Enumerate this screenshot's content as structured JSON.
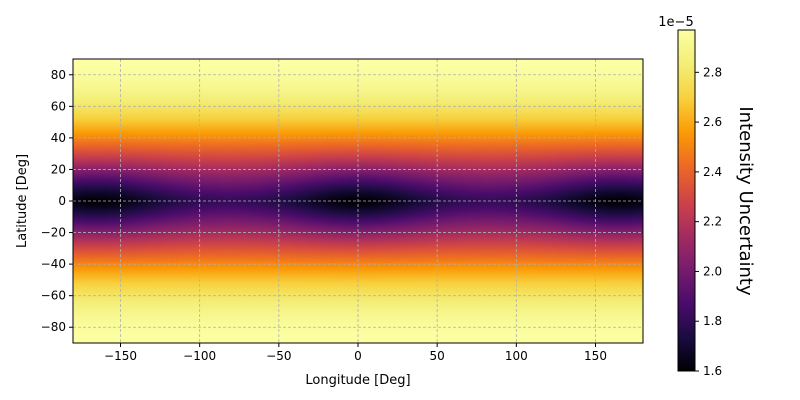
{
  "chart_data": {
    "type": "heatmap",
    "title": "",
    "xlabel": "Longitude [Deg]",
    "ylabel": "Latitude [Deg]",
    "xlim": [
      -180,
      180
    ],
    "ylim": [
      -90,
      90
    ],
    "x_ticks": [
      -150,
      -100,
      -50,
      0,
      50,
      100,
      150
    ],
    "x_tick_labels": [
      "−150",
      "−100",
      "−50",
      "0",
      "50",
      "100",
      "150"
    ],
    "y_ticks": [
      -80,
      -60,
      -40,
      -20,
      0,
      20,
      40,
      60,
      80
    ],
    "y_tick_labels": [
      "−80",
      "−60",
      "−40",
      "−20",
      "0",
      "20",
      "40",
      "60",
      "80"
    ],
    "grid": true,
    "colormap": "inferno",
    "colorbar": {
      "label": "Intensity Uncertainty",
      "offset_text": "1e−5",
      "range": [
        1.6,
        2.97
      ],
      "ticks": [
        1.6,
        1.8,
        2.0,
        2.2,
        2.4,
        2.6,
        2.8
      ],
      "tick_labels": [
        "1.6",
        "1.8",
        "2.0",
        "2.2",
        "2.4",
        "2.6",
        "2.8"
      ]
    },
    "field_model": {
      "equator_minima_longitudes": [
        -165,
        0,
        165
      ],
      "min_value": 1.6,
      "max_value": 2.97
    }
  }
}
